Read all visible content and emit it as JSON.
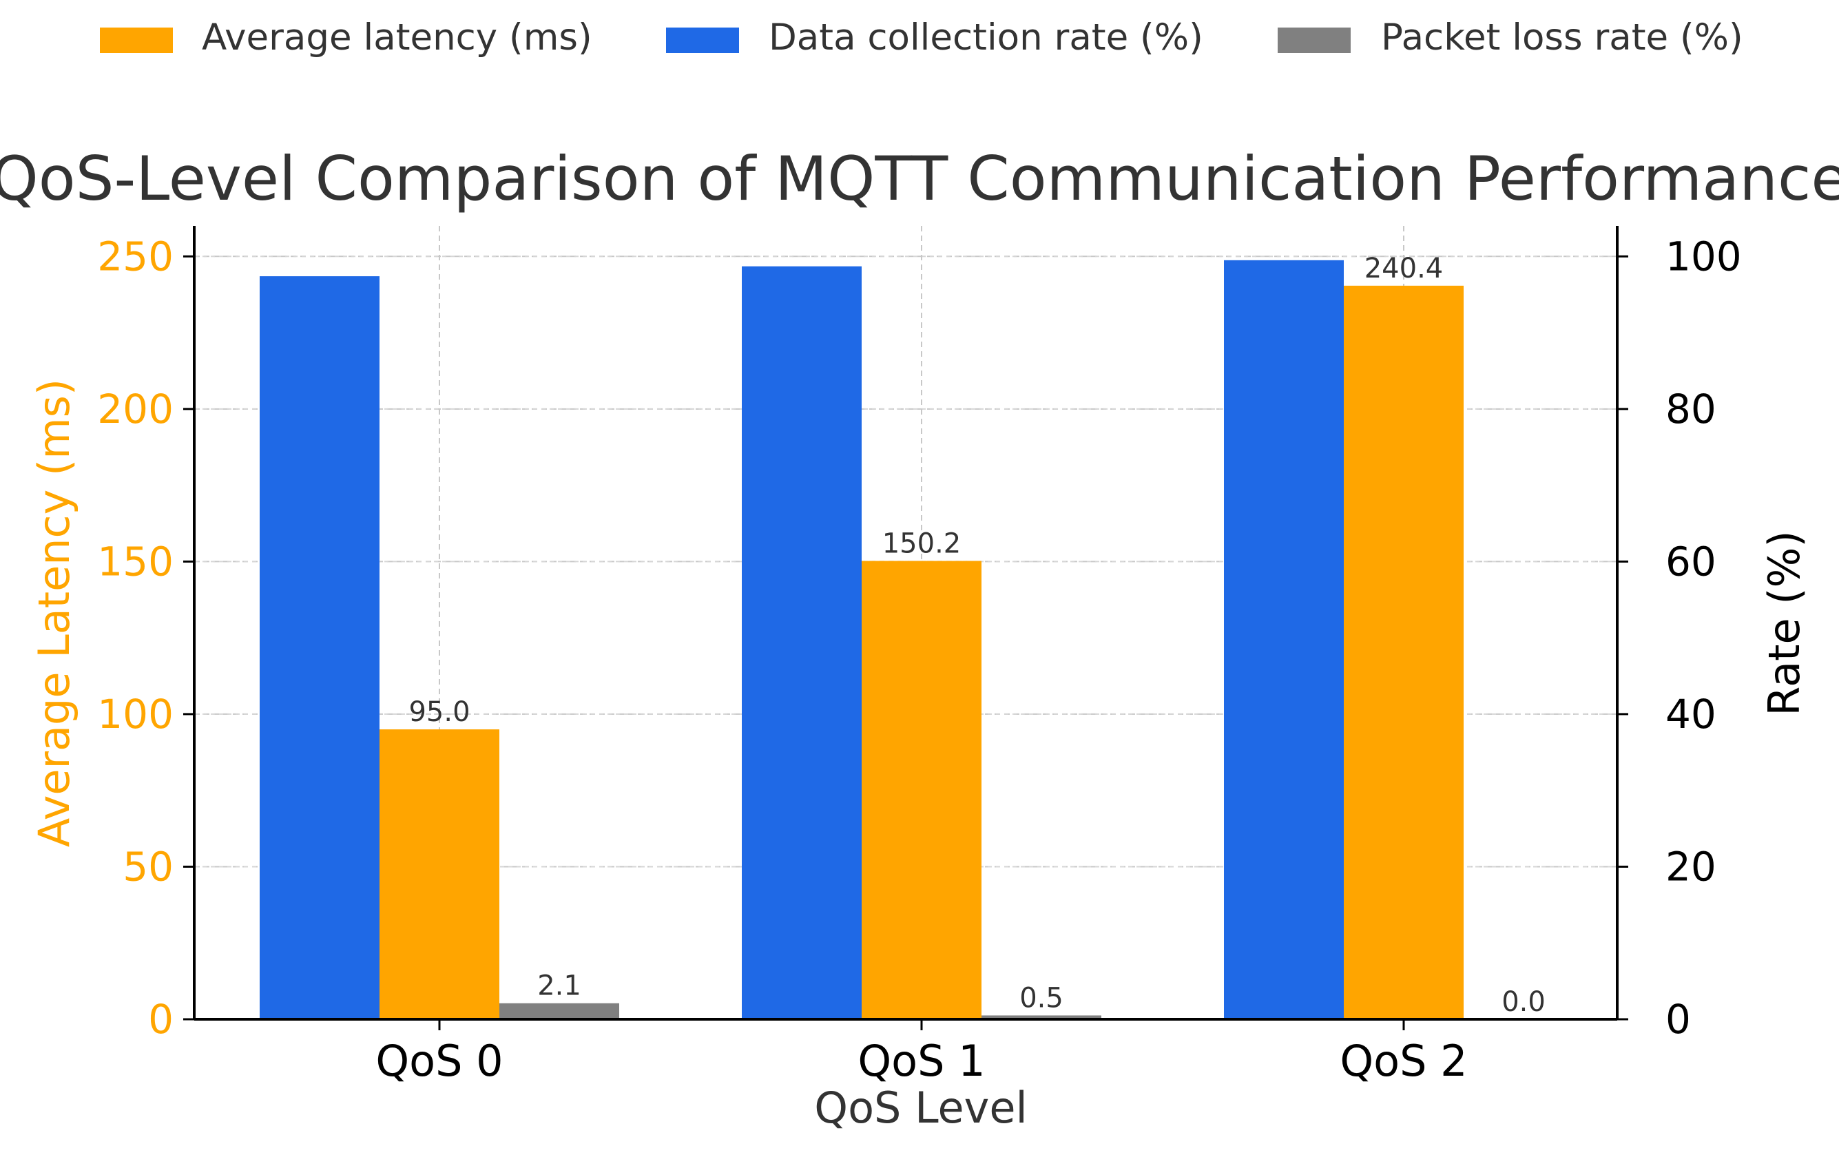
{
  "chart_data": {
    "type": "bar",
    "title": "QoS-Level Comparison of MQTT Communication Performance",
    "xlabel": "QoS Level",
    "ylabel_left": "Average Latency (ms)",
    "ylabel_right": "Rate (%)",
    "categories": [
      "QoS 0",
      "QoS 1",
      "QoS 2"
    ],
    "ylim_left": [
      0,
      260
    ],
    "ylim_right": [
      0,
      104
    ],
    "yticks_left": [
      0,
      50,
      100,
      150,
      200,
      250
    ],
    "yticks_right": [
      0,
      20,
      40,
      60,
      80,
      100
    ],
    "grid": true,
    "legend_position": "top",
    "series": [
      {
        "name": "Data collection rate (%)",
        "axis": "right",
        "color": "#1f69e6",
        "values": [
          97.4,
          98.7,
          99.5
        ],
        "show_labels": false
      },
      {
        "name": "Average latency (ms)",
        "axis": "left",
        "color": "#ffa500",
        "values": [
          95.0,
          150.2,
          240.4
        ],
        "show_labels": true
      },
      {
        "name": "Packet loss rate (%)",
        "axis": "right",
        "color": "#808080",
        "values": [
          2.1,
          0.5,
          0.0
        ],
        "show_labels": true
      }
    ],
    "legend": [
      {
        "label": "Average latency (ms)",
        "color": "#ffa500"
      },
      {
        "label": "Data collection rate (%)",
        "color": "#1f69e6"
      },
      {
        "label": "Packet loss rate (%)",
        "color": "#808080"
      }
    ],
    "colors": {
      "left_axis": "#ffa500",
      "right_axis": "#000000",
      "text": "#333333"
    }
  }
}
